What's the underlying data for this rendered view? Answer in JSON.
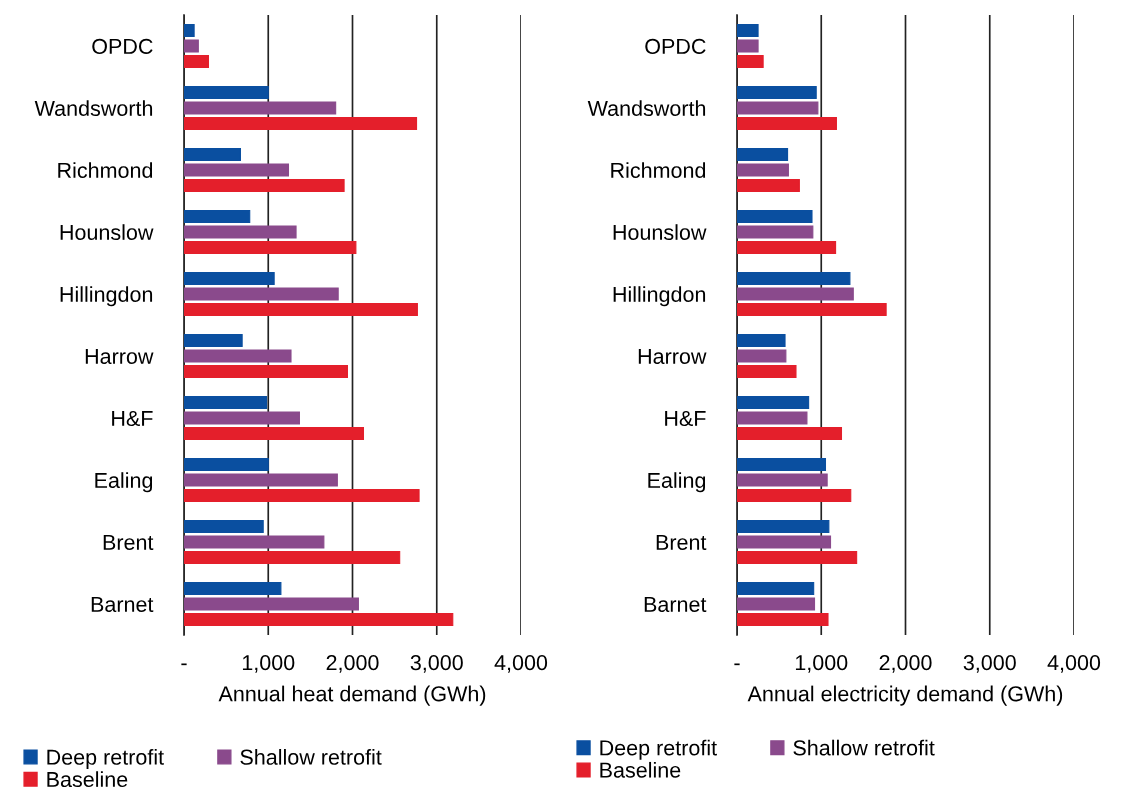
{
  "chart_data": [
    {
      "type": "bar",
      "orientation": "horizontal",
      "xlabel": "Annual heat demand (GWh)",
      "categories": [
        "OPDC",
        "Wandsworth",
        "Richmond",
        "Hounslow",
        "Hillingdon",
        "Harrow",
        "H&F",
        "Ealing",
        "Brent",
        "Barnet"
      ],
      "xlim": [
        0,
        4000
      ],
      "xticks": [
        {
          "value": 0,
          "label": "-"
        },
        {
          "value": 1000,
          "label": "1,000"
        },
        {
          "value": 2000,
          "label": "2,000"
        },
        {
          "value": 3000,
          "label": "3,000"
        },
        {
          "value": 4000,
          "label": "4,000"
        }
      ],
      "grid": "x",
      "legend": "bottom",
      "series": [
        {
          "name": "Deep retrofit",
          "color": "#0a4fa0",
          "values": [
            120,
            1000,
            670,
            780,
            1070,
            690,
            980,
            1000,
            940,
            1150
          ]
        },
        {
          "name": "Shallow retrofit",
          "color": "#8a4a8c",
          "values": [
            170,
            1800,
            1240,
            1330,
            1830,
            1270,
            1370,
            1820,
            1660,
            2070
          ]
        },
        {
          "name": "Baseline",
          "color": "#e41f2b",
          "values": [
            290,
            2760,
            1900,
            2040,
            2770,
            1940,
            2130,
            2790,
            2560,
            3190
          ]
        }
      ]
    },
    {
      "type": "bar",
      "orientation": "horizontal",
      "xlabel": "Annual electricity demand (GWh)",
      "categories": [
        "OPDC",
        "Wandsworth",
        "Richmond",
        "Hounslow",
        "Hillingdon",
        "Harrow",
        "H&F",
        "Ealing",
        "Brent",
        "Barnet"
      ],
      "xlim": [
        0,
        4000
      ],
      "xticks": [
        {
          "value": 0,
          "label": "-"
        },
        {
          "value": 1000,
          "label": "1,000"
        },
        {
          "value": 2000,
          "label": "2,000"
        },
        {
          "value": 3000,
          "label": "3,000"
        },
        {
          "value": 4000,
          "label": "4,000"
        }
      ],
      "grid": "x",
      "legend": "bottom",
      "series": [
        {
          "name": "Deep retrofit",
          "color": "#0a4fa0",
          "values": [
            250,
            940,
            600,
            890,
            1340,
            570,
            850,
            1050,
            1090,
            910
          ]
        },
        {
          "name": "Shallow retrofit",
          "color": "#8a4a8c",
          "values": [
            250,
            960,
            610,
            900,
            1380,
            580,
            830,
            1070,
            1110,
            920
          ]
        },
        {
          "name": "Baseline",
          "color": "#e41f2b",
          "values": [
            310,
            1180,
            740,
            1170,
            1770,
            700,
            1240,
            1350,
            1420,
            1080
          ]
        }
      ]
    }
  ]
}
